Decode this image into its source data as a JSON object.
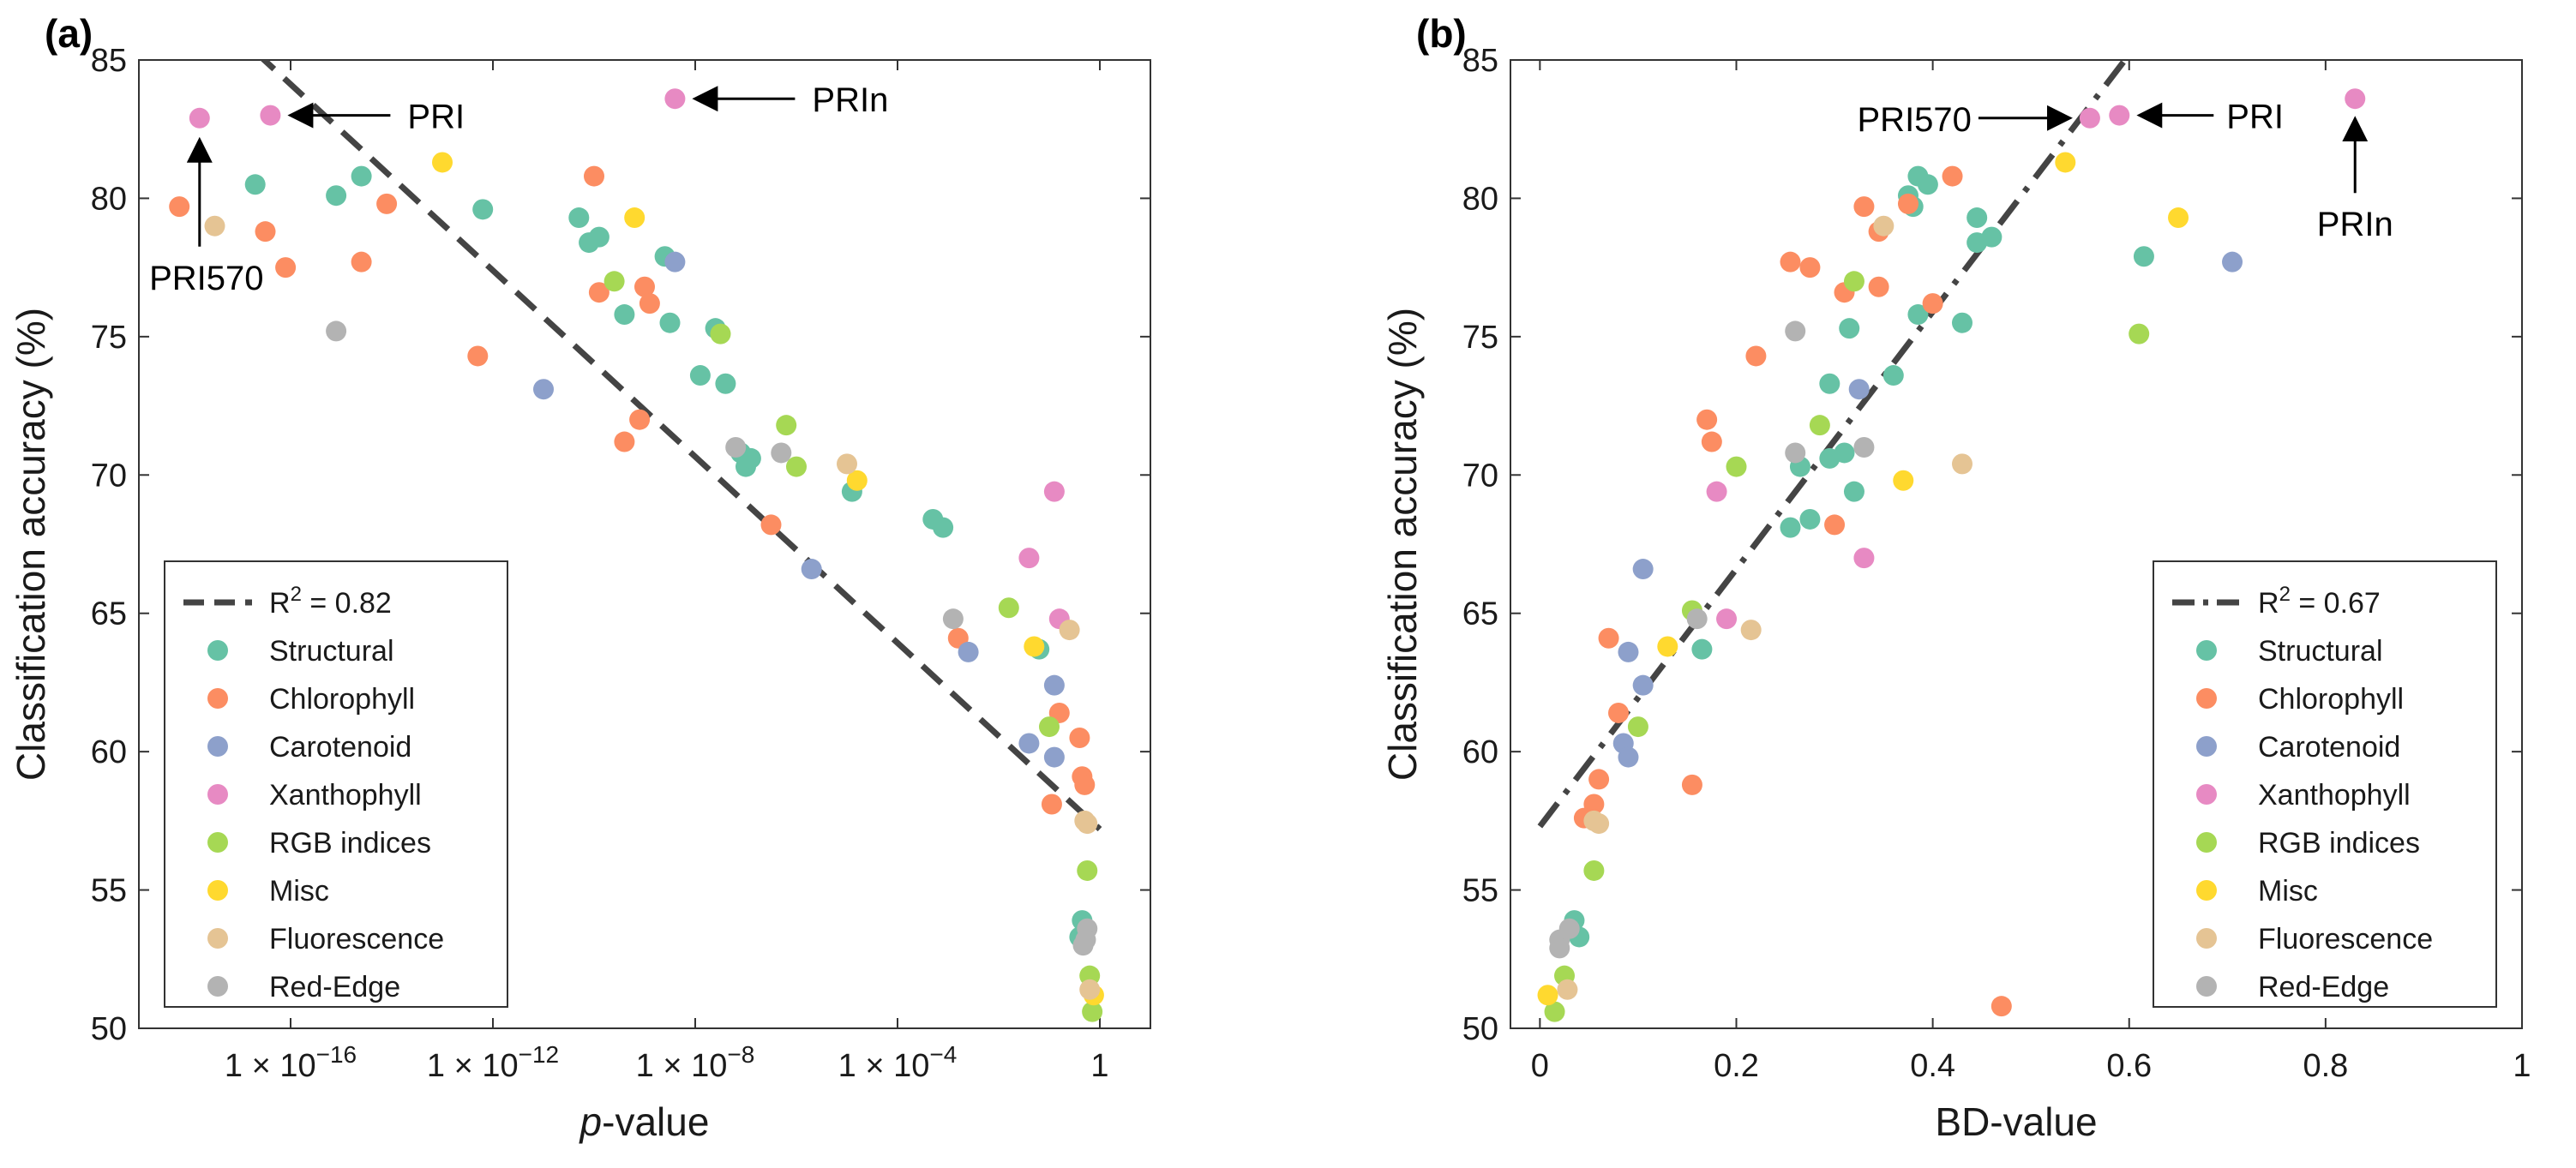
{
  "colors": {
    "Structural": "#66c2a5",
    "Chlorophyll": "#fc8d62",
    "Carotenoid": "#8da0cb",
    "Xanthophyll": "#e78ac3",
    "RGB indices": "#a6d854",
    "Misc": "#ffd92f",
    "Fluorescence": "#e5c494",
    "Red-Edge": "#b3b3b3",
    "fit_line": "#444444"
  },
  "chart_data": [
    {
      "panel": "(a)",
      "type": "scatter",
      "xscale": "log10",
      "xlabel_italic": "p",
      "xlabel_rest": "-value",
      "ylabel": "Classification accuracy (%)",
      "xlim_log10": [
        -19,
        1
      ],
      "ylim": [
        50,
        85
      ],
      "xticks": [
        {
          "log10": -16,
          "label": "1 × 10",
          "exp": "−16"
        },
        {
          "log10": -12,
          "label": "1 × 10",
          "exp": "−12"
        },
        {
          "log10": -8,
          "label": "1 × 10",
          "exp": "−8"
        },
        {
          "log10": -4,
          "label": "1 × 10",
          "exp": "−4"
        },
        {
          "log10": 0,
          "label": "1",
          "exp": ""
        }
      ],
      "yticks": [
        50,
        55,
        60,
        65,
        70,
        75,
        80,
        85
      ],
      "fit": {
        "style": "dashed",
        "label": "R",
        "sup": "2",
        "value": " = 0.82",
        "x": [
          -16.7,
          0
        ],
        "y": [
          85.3,
          57.2
        ]
      },
      "legend_position": "bottom-left",
      "legend_order": [
        "Structural",
        "Chlorophyll",
        "Carotenoid",
        "Xanthophyll",
        "RGB indices",
        "Misc",
        "Fluorescence",
        "Red-Edge"
      ],
      "annotations": [
        {
          "text": "PRI",
          "direction": "left"
        },
        {
          "text": "PRIn",
          "direction": "left"
        },
        {
          "text": "PRI570",
          "direction": "up"
        }
      ],
      "points": [
        {
          "g": "Xanthophyll",
          "x": -17.8,
          "y": 82.9
        },
        {
          "g": "Xanthophyll",
          "x": -16.4,
          "y": 83.0
        },
        {
          "g": "Xanthophyll",
          "x": -8.4,
          "y": 83.6
        },
        {
          "g": "Xanthophyll",
          "x": -0.9,
          "y": 69.4
        },
        {
          "g": "Xanthophyll",
          "x": -1.4,
          "y": 67.0
        },
        {
          "g": "Xanthophyll",
          "x": -0.8,
          "y": 64.8
        },
        {
          "g": "Structural",
          "x": -16.7,
          "y": 80.5
        },
        {
          "g": "Structural",
          "x": -15.1,
          "y": 80.1
        },
        {
          "g": "Structural",
          "x": -14.6,
          "y": 80.8
        },
        {
          "g": "Structural",
          "x": -12.2,
          "y": 79.6
        },
        {
          "g": "Structural",
          "x": -10.3,
          "y": 79.3
        },
        {
          "g": "Structural",
          "x": -10.1,
          "y": 78.4
        },
        {
          "g": "Structural",
          "x": -9.9,
          "y": 78.6
        },
        {
          "g": "Structural",
          "x": -8.6,
          "y": 77.9
        },
        {
          "g": "Structural",
          "x": -9.4,
          "y": 75.8
        },
        {
          "g": "Structural",
          "x": -8.5,
          "y": 75.5
        },
        {
          "g": "Structural",
          "x": -7.6,
          "y": 75.3
        },
        {
          "g": "Structural",
          "x": -7.9,
          "y": 73.6
        },
        {
          "g": "Structural",
          "x": -7.4,
          "y": 73.3
        },
        {
          "g": "Structural",
          "x": -7.1,
          "y": 70.8
        },
        {
          "g": "Structural",
          "x": -7.0,
          "y": 70.3
        },
        {
          "g": "Structural",
          "x": -6.9,
          "y": 70.6
        },
        {
          "g": "Structural",
          "x": -4.9,
          "y": 69.4
        },
        {
          "g": "Structural",
          "x": -3.3,
          "y": 68.4
        },
        {
          "g": "Structural",
          "x": -3.1,
          "y": 68.1
        },
        {
          "g": "Structural",
          "x": -1.2,
          "y": 63.7
        },
        {
          "g": "Structural",
          "x": -0.35,
          "y": 53.9
        },
        {
          "g": "Structural",
          "x": -0.4,
          "y": 53.3
        },
        {
          "g": "Chlorophyll",
          "x": -18.2,
          "y": 79.7
        },
        {
          "g": "Chlorophyll",
          "x": -16.5,
          "y": 78.8
        },
        {
          "g": "Chlorophyll",
          "x": -16.1,
          "y": 77.5
        },
        {
          "g": "Chlorophyll",
          "x": -14.6,
          "y": 77.7
        },
        {
          "g": "Chlorophyll",
          "x": -14.1,
          "y": 79.8
        },
        {
          "g": "Chlorophyll",
          "x": -12.3,
          "y": 74.3
        },
        {
          "g": "Chlorophyll",
          "x": -10.0,
          "y": 80.8
        },
        {
          "g": "Chlorophyll",
          "x": -9.9,
          "y": 76.6
        },
        {
          "g": "Chlorophyll",
          "x": -9.0,
          "y": 76.8
        },
        {
          "g": "Chlorophyll",
          "x": -8.9,
          "y": 76.2
        },
        {
          "g": "Chlorophyll",
          "x": -9.4,
          "y": 71.2
        },
        {
          "g": "Chlorophyll",
          "x": -9.1,
          "y": 72.0
        },
        {
          "g": "Chlorophyll",
          "x": -6.5,
          "y": 68.2
        },
        {
          "g": "Chlorophyll",
          "x": -2.8,
          "y": 64.1
        },
        {
          "g": "Chlorophyll",
          "x": -0.8,
          "y": 61.4
        },
        {
          "g": "Chlorophyll",
          "x": -0.95,
          "y": 58.1
        },
        {
          "g": "Chlorophyll",
          "x": -0.4,
          "y": 60.5
        },
        {
          "g": "Chlorophyll",
          "x": -0.35,
          "y": 59.1
        },
        {
          "g": "Chlorophyll",
          "x": -0.3,
          "y": 58.8
        },
        {
          "g": "Carotenoid",
          "x": -8.4,
          "y": 77.7
        },
        {
          "g": "Carotenoid",
          "x": -11.0,
          "y": 73.1
        },
        {
          "g": "Carotenoid",
          "x": -5.7,
          "y": 66.6
        },
        {
          "g": "Carotenoid",
          "x": -2.6,
          "y": 63.6
        },
        {
          "g": "Carotenoid",
          "x": -0.9,
          "y": 62.4
        },
        {
          "g": "Carotenoid",
          "x": -1.4,
          "y": 60.3
        },
        {
          "g": "Carotenoid",
          "x": -0.9,
          "y": 59.8
        },
        {
          "g": "RGB indices",
          "x": -9.6,
          "y": 77.0
        },
        {
          "g": "RGB indices",
          "x": -7.5,
          "y": 75.1
        },
        {
          "g": "RGB indices",
          "x": -6.2,
          "y": 71.8
        },
        {
          "g": "RGB indices",
          "x": -6.0,
          "y": 70.3
        },
        {
          "g": "RGB indices",
          "x": -1.8,
          "y": 65.2
        },
        {
          "g": "RGB indices",
          "x": -1.0,
          "y": 60.9
        },
        {
          "g": "RGB indices",
          "x": -0.25,
          "y": 55.7
        },
        {
          "g": "RGB indices",
          "x": -0.2,
          "y": 51.9
        },
        {
          "g": "RGB indices",
          "x": -0.15,
          "y": 50.6
        },
        {
          "g": "Misc",
          "x": -13.0,
          "y": 81.3
        },
        {
          "g": "Misc",
          "x": -9.2,
          "y": 79.3
        },
        {
          "g": "Misc",
          "x": -4.8,
          "y": 69.8
        },
        {
          "g": "Misc",
          "x": -1.3,
          "y": 63.8
        },
        {
          "g": "Misc",
          "x": -0.12,
          "y": 51.2
        },
        {
          "g": "Fluorescence",
          "x": -17.5,
          "y": 79.0
        },
        {
          "g": "Fluorescence",
          "x": -5.0,
          "y": 70.4
        },
        {
          "g": "Fluorescence",
          "x": -0.6,
          "y": 64.4
        },
        {
          "g": "Fluorescence",
          "x": -0.3,
          "y": 57.5
        },
        {
          "g": "Fluorescence",
          "x": -0.25,
          "y": 57.4
        },
        {
          "g": "Fluorescence",
          "x": -0.2,
          "y": 51.4
        },
        {
          "g": "Red-Edge",
          "x": -15.1,
          "y": 75.2
        },
        {
          "g": "Red-Edge",
          "x": -7.2,
          "y": 71.0
        },
        {
          "g": "Red-Edge",
          "x": -6.3,
          "y": 70.8
        },
        {
          "g": "Red-Edge",
          "x": -2.9,
          "y": 64.8
        },
        {
          "g": "Red-Edge",
          "x": -0.25,
          "y": 53.6
        },
        {
          "g": "Red-Edge",
          "x": -0.28,
          "y": 53.2
        },
        {
          "g": "Red-Edge",
          "x": -0.33,
          "y": 53.0
        }
      ]
    },
    {
      "panel": "(b)",
      "type": "scatter",
      "xscale": "linear",
      "xlabel": "BD-value",
      "ylabel": "Classification accuracy (%)",
      "xlim": [
        -0.03,
        1.0
      ],
      "ylim": [
        50,
        85
      ],
      "xticks": [
        {
          "v": 0,
          "label": "0"
        },
        {
          "v": 0.2,
          "label": "0.2"
        },
        {
          "v": 0.4,
          "label": "0.4"
        },
        {
          "v": 0.6,
          "label": "0.6"
        },
        {
          "v": 0.8,
          "label": "0.8"
        },
        {
          "v": 1.0,
          "label": "1"
        }
      ],
      "yticks": [
        50,
        55,
        60,
        65,
        70,
        75,
        80,
        85
      ],
      "fit": {
        "style": "dashdot",
        "label": "R",
        "sup": "2",
        "value": " = 0.67",
        "x": [
          0,
          0.6
        ],
        "y": [
          57.3,
          85.2
        ]
      },
      "legend_position": "bottom-right",
      "legend_order": [
        "Structural",
        "Chlorophyll",
        "Carotenoid",
        "Xanthophyll",
        "RGB indices",
        "Misc",
        "Fluorescence",
        "Red-Edge"
      ],
      "annotations": [
        {
          "text": "PRI570",
          "direction": "right"
        },
        {
          "text": "PRI",
          "direction": "left"
        },
        {
          "text": "PRIn",
          "direction": "up"
        }
      ],
      "points": [
        {
          "g": "Xanthophyll",
          "x": 0.56,
          "y": 82.9
        },
        {
          "g": "Xanthophyll",
          "x": 0.59,
          "y": 83.0
        },
        {
          "g": "Xanthophyll",
          "x": 0.83,
          "y": 83.6
        },
        {
          "g": "Xanthophyll",
          "x": 0.18,
          "y": 69.4
        },
        {
          "g": "Xanthophyll",
          "x": 0.33,
          "y": 67.0
        },
        {
          "g": "Xanthophyll",
          "x": 0.19,
          "y": 64.8
        },
        {
          "g": "Structural",
          "x": 0.385,
          "y": 80.8
        },
        {
          "g": "Structural",
          "x": 0.395,
          "y": 80.5
        },
        {
          "g": "Structural",
          "x": 0.375,
          "y": 80.1
        },
        {
          "g": "Structural",
          "x": 0.38,
          "y": 79.7
        },
        {
          "g": "Structural",
          "x": 0.445,
          "y": 79.3
        },
        {
          "g": "Structural",
          "x": 0.46,
          "y": 78.6
        },
        {
          "g": "Structural",
          "x": 0.445,
          "y": 78.4
        },
        {
          "g": "Structural",
          "x": 0.615,
          "y": 77.9
        },
        {
          "g": "Structural",
          "x": 0.385,
          "y": 75.8
        },
        {
          "g": "Structural",
          "x": 0.43,
          "y": 75.5
        },
        {
          "g": "Structural",
          "x": 0.315,
          "y": 75.3
        },
        {
          "g": "Structural",
          "x": 0.36,
          "y": 73.6
        },
        {
          "g": "Structural",
          "x": 0.295,
          "y": 73.3
        },
        {
          "g": "Structural",
          "x": 0.31,
          "y": 70.8
        },
        {
          "g": "Structural",
          "x": 0.295,
          "y": 70.6
        },
        {
          "g": "Structural",
          "x": 0.265,
          "y": 70.3
        },
        {
          "g": "Structural",
          "x": 0.32,
          "y": 69.4
        },
        {
          "g": "Structural",
          "x": 0.275,
          "y": 68.4
        },
        {
          "g": "Structural",
          "x": 0.255,
          "y": 68.1
        },
        {
          "g": "Structural",
          "x": 0.165,
          "y": 63.7
        },
        {
          "g": "Structural",
          "x": 0.035,
          "y": 53.9
        },
        {
          "g": "Structural",
          "x": 0.04,
          "y": 53.3
        },
        {
          "g": "Chlorophyll",
          "x": 0.42,
          "y": 80.8
        },
        {
          "g": "Chlorophyll",
          "x": 0.33,
          "y": 79.7
        },
        {
          "g": "Chlorophyll",
          "x": 0.375,
          "y": 79.8
        },
        {
          "g": "Chlorophyll",
          "x": 0.345,
          "y": 78.8
        },
        {
          "g": "Chlorophyll",
          "x": 0.255,
          "y": 77.7
        },
        {
          "g": "Chlorophyll",
          "x": 0.275,
          "y": 77.5
        },
        {
          "g": "Chlorophyll",
          "x": 0.31,
          "y": 76.6
        },
        {
          "g": "Chlorophyll",
          "x": 0.345,
          "y": 76.8
        },
        {
          "g": "Chlorophyll",
          "x": 0.4,
          "y": 76.2
        },
        {
          "g": "Chlorophyll",
          "x": 0.22,
          "y": 74.3
        },
        {
          "g": "Chlorophyll",
          "x": 0.17,
          "y": 72.0
        },
        {
          "g": "Chlorophyll",
          "x": 0.175,
          "y": 71.2
        },
        {
          "g": "Chlorophyll",
          "x": 0.3,
          "y": 68.2
        },
        {
          "g": "Chlorophyll",
          "x": 0.07,
          "y": 64.1
        },
        {
          "g": "Chlorophyll",
          "x": 0.08,
          "y": 61.4
        },
        {
          "g": "Chlorophyll",
          "x": 0.06,
          "y": 59.0
        },
        {
          "g": "Chlorophyll",
          "x": 0.155,
          "y": 58.8
        },
        {
          "g": "Chlorophyll",
          "x": 0.055,
          "y": 58.1
        },
        {
          "g": "Chlorophyll",
          "x": 0.045,
          "y": 57.6
        },
        {
          "g": "Chlorophyll",
          "x": 0.47,
          "y": 50.8
        },
        {
          "g": "Carotenoid",
          "x": 0.705,
          "y": 77.7
        },
        {
          "g": "Carotenoid",
          "x": 0.325,
          "y": 73.1
        },
        {
          "g": "Carotenoid",
          "x": 0.105,
          "y": 66.6
        },
        {
          "g": "Carotenoid",
          "x": 0.09,
          "y": 63.6
        },
        {
          "g": "Carotenoid",
          "x": 0.105,
          "y": 62.4
        },
        {
          "g": "Carotenoid",
          "x": 0.085,
          "y": 60.3
        },
        {
          "g": "Carotenoid",
          "x": 0.09,
          "y": 59.8
        },
        {
          "g": "RGB indices",
          "x": 0.32,
          "y": 77.0
        },
        {
          "g": "RGB indices",
          "x": 0.61,
          "y": 75.1
        },
        {
          "g": "RGB indices",
          "x": 0.285,
          "y": 71.8
        },
        {
          "g": "RGB indices",
          "x": 0.2,
          "y": 70.3
        },
        {
          "g": "RGB indices",
          "x": 0.155,
          "y": 65.1
        },
        {
          "g": "RGB indices",
          "x": 0.1,
          "y": 60.9
        },
        {
          "g": "RGB indices",
          "x": 0.055,
          "y": 55.7
        },
        {
          "g": "RGB indices",
          "x": 0.025,
          "y": 51.9
        },
        {
          "g": "RGB indices",
          "x": 0.015,
          "y": 50.6
        },
        {
          "g": "Misc",
          "x": 0.535,
          "y": 81.3
        },
        {
          "g": "Misc",
          "x": 0.65,
          "y": 79.3
        },
        {
          "g": "Misc",
          "x": 0.37,
          "y": 69.8
        },
        {
          "g": "Misc",
          "x": 0.13,
          "y": 63.8
        },
        {
          "g": "Misc",
          "x": 0.008,
          "y": 51.2
        },
        {
          "g": "Fluorescence",
          "x": 0.35,
          "y": 79.0
        },
        {
          "g": "Fluorescence",
          "x": 0.43,
          "y": 70.4
        },
        {
          "g": "Fluorescence",
          "x": 0.215,
          "y": 64.4
        },
        {
          "g": "Fluorescence",
          "x": 0.055,
          "y": 57.5
        },
        {
          "g": "Fluorescence",
          "x": 0.06,
          "y": 57.4
        },
        {
          "g": "Fluorescence",
          "x": 0.028,
          "y": 51.4
        },
        {
          "g": "Red-Edge",
          "x": 0.26,
          "y": 75.2
        },
        {
          "g": "Red-Edge",
          "x": 0.26,
          "y": 70.8
        },
        {
          "g": "Red-Edge",
          "x": 0.33,
          "y": 71.0
        },
        {
          "g": "Red-Edge",
          "x": 0.16,
          "y": 64.8
        },
        {
          "g": "Red-Edge",
          "x": 0.03,
          "y": 53.6
        },
        {
          "g": "Red-Edge",
          "x": 0.02,
          "y": 53.2
        },
        {
          "g": "Red-Edge",
          "x": 0.02,
          "y": 52.9
        }
      ]
    }
  ]
}
